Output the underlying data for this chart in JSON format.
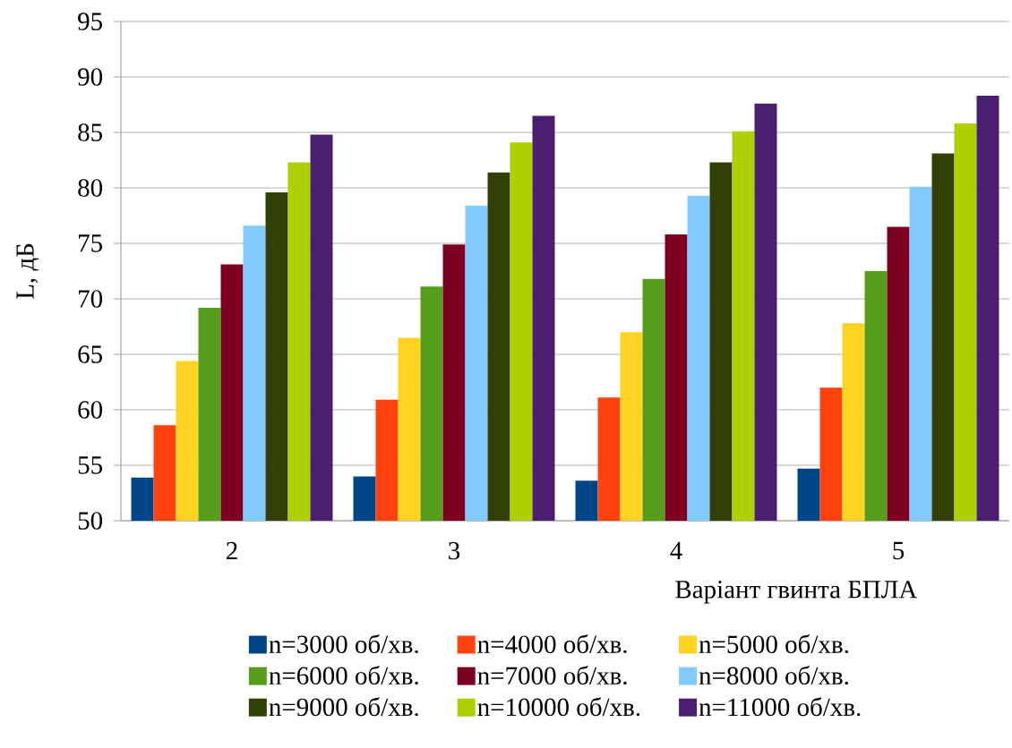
{
  "chart_data": {
    "type": "bar",
    "xlabel": "Варіант гвинта БПЛА",
    "ylabel": "L, дБ",
    "categories": [
      "2",
      "3",
      "4",
      "5"
    ],
    "series": [
      {
        "name": "n=3000 об/хв.",
        "color": "#004586",
        "values": [
          53.9,
          54.0,
          53.6,
          54.7
        ]
      },
      {
        "name": "n=4000 об/хв.",
        "color": "#ff420e",
        "values": [
          58.6,
          60.9,
          61.1,
          62.0
        ]
      },
      {
        "name": "n=5000 об/хв.",
        "color": "#ffd320",
        "values": [
          64.4,
          66.5,
          67.0,
          67.8
        ]
      },
      {
        "name": "n=6000 об/хв.",
        "color": "#579d1c",
        "values": [
          69.2,
          71.1,
          71.8,
          72.5
        ]
      },
      {
        "name": "n=7000 об/хв.",
        "color": "#7e0021",
        "values": [
          73.1,
          74.9,
          75.8,
          76.5
        ]
      },
      {
        "name": "n=8000 об/хв.",
        "color": "#83caff",
        "values": [
          76.6,
          78.4,
          79.3,
          80.1
        ]
      },
      {
        "name": "n=9000 об/хв.",
        "color": "#314004",
        "values": [
          79.6,
          81.4,
          82.3,
          83.1
        ]
      },
      {
        "name": "n=10000 об/хв.",
        "color": "#aecf00",
        "values": [
          82.3,
          84.1,
          85.1,
          85.8
        ]
      },
      {
        "name": "n=11000 об/хв.",
        "color": "#4b1f6f",
        "values": [
          84.8,
          86.5,
          87.6,
          88.3
        ]
      }
    ],
    "ylim": [
      50,
      95
    ],
    "yticks": [
      50,
      55,
      60,
      65,
      70,
      75,
      80,
      85,
      90,
      95
    ],
    "grid": "y",
    "legend": "bottom"
  }
}
